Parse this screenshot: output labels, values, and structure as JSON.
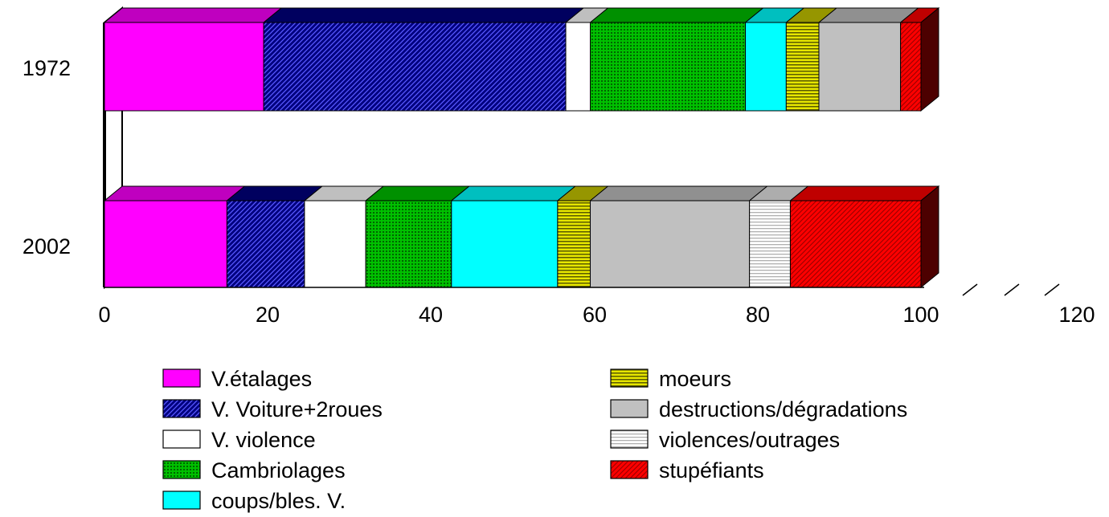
{
  "chart_data": {
    "type": "bar",
    "orientation": "horizontal",
    "stacked": true,
    "three_d": true,
    "categories": [
      "1972",
      "2002"
    ],
    "series": [
      {
        "name": "V.étalages",
        "values": [
          19.5,
          15
        ],
        "color": "#ff00ff",
        "pattern": "solid"
      },
      {
        "name": "V. Voiture+2roues",
        "values": [
          37,
          9.5
        ],
        "color": "#00007f",
        "pattern": "diagonal-hatch"
      },
      {
        "name": "V. violence",
        "values": [
          3,
          7.5
        ],
        "color": "#ffffff",
        "pattern": "solid"
      },
      {
        "name": "Cambriolages",
        "values": [
          19,
          10.5
        ],
        "color": "#00c000",
        "pattern": "dotted"
      },
      {
        "name": "coups/bles. V.",
        "values": [
          5,
          13
        ],
        "color": "#00ffff",
        "pattern": "solid"
      },
      {
        "name": "moeurs",
        "values": [
          4,
          4
        ],
        "color": "#c8c800",
        "pattern": "horizontal-lines"
      },
      {
        "name": "destructions/dégradations",
        "values": [
          10,
          19.5
        ],
        "color": "#c0c0c0",
        "pattern": "solid"
      },
      {
        "name": "violences/outrages",
        "values": [
          0,
          5
        ],
        "color": "#e6e6e6",
        "pattern": "horizontal-lines-light"
      },
      {
        "name": "stupéfiants",
        "values": [
          2.5,
          16
        ],
        "color": "#ff0000",
        "pattern": "diagonal-hatch-red"
      }
    ],
    "xlim": [
      0,
      120
    ],
    "xticks": [
      "0",
      "20",
      "40",
      "60",
      "80",
      "100",
      "120"
    ],
    "legend_position": "bottom"
  }
}
